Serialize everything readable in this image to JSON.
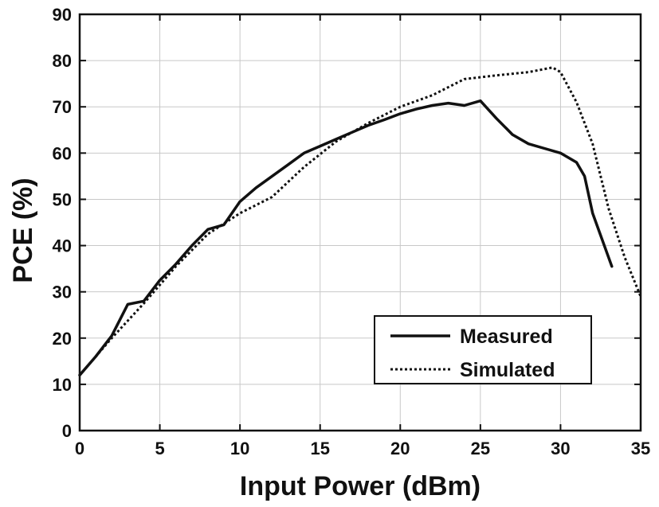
{
  "chart_data": {
    "type": "line",
    "title": "",
    "xlabel": "Input Power (dBm)",
    "ylabel": "PCE (%)",
    "xlim": [
      0,
      35
    ],
    "ylim": [
      0,
      90
    ],
    "xticks": [
      0,
      5,
      10,
      15,
      20,
      25,
      30,
      35
    ],
    "yticks": [
      0,
      10,
      20,
      30,
      40,
      50,
      60,
      70,
      80,
      90
    ],
    "grid": true,
    "legend_position": "bottom-right",
    "series": [
      {
        "name": "Measured",
        "style": "solid",
        "color": "#111111",
        "points": [
          [
            0,
            12
          ],
          [
            1,
            16
          ],
          [
            2,
            20.5
          ],
          [
            3,
            27.3
          ],
          [
            4,
            28
          ],
          [
            5,
            32.5
          ],
          [
            6,
            36
          ],
          [
            7,
            40
          ],
          [
            8,
            43.5
          ],
          [
            9,
            44.5
          ],
          [
            10,
            49.5
          ],
          [
            11,
            52.5
          ],
          [
            12,
            55
          ],
          [
            13,
            57.5
          ],
          [
            14,
            60
          ],
          [
            15,
            61.5
          ],
          [
            16,
            63
          ],
          [
            17,
            64.5
          ],
          [
            18,
            66
          ],
          [
            19,
            67.2
          ],
          [
            20,
            68.5
          ],
          [
            21,
            69.5
          ],
          [
            22,
            70.3
          ],
          [
            23,
            70.8
          ],
          [
            24,
            70.3
          ],
          [
            25,
            71.3
          ],
          [
            26,
            67.5
          ],
          [
            27,
            64
          ],
          [
            28,
            62
          ],
          [
            29,
            61
          ],
          [
            30,
            60
          ],
          [
            31,
            58
          ],
          [
            31.5,
            55
          ],
          [
            32,
            47
          ],
          [
            33.2,
            35.5
          ]
        ]
      },
      {
        "name": "Simulated",
        "style": "dotted",
        "color": "#111111",
        "points": [
          [
            0,
            12
          ],
          [
            2,
            20
          ],
          [
            4,
            27.5
          ],
          [
            6,
            35.5
          ],
          [
            8,
            42.5
          ],
          [
            10,
            47
          ],
          [
            12,
            50.5
          ],
          [
            14,
            57
          ],
          [
            16,
            62.5
          ],
          [
            18,
            66.5
          ],
          [
            20,
            70
          ],
          [
            22,
            72.5
          ],
          [
            24,
            76
          ],
          [
            26,
            76.8
          ],
          [
            28,
            77.5
          ],
          [
            29.5,
            78.5
          ],
          [
            30,
            77.5
          ],
          [
            31,
            71
          ],
          [
            32,
            62
          ],
          [
            33,
            48
          ],
          [
            34,
            37.5
          ],
          [
            35,
            29
          ]
        ]
      }
    ]
  }
}
